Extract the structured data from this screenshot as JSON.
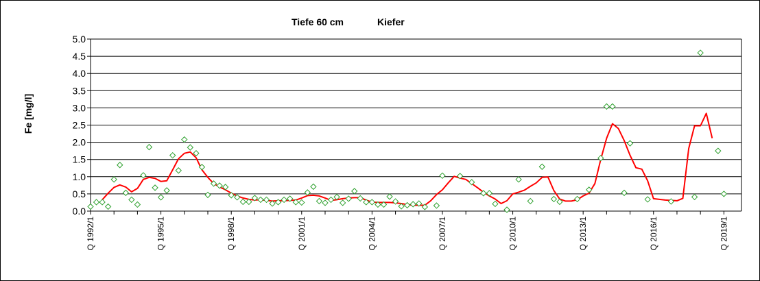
{
  "chart_data": {
    "type": "line",
    "title_depth": "Tiefe  60 cm",
    "title_species": "Kiefer",
    "ylabel": "Fe [mg/l]",
    "ylim": [
      0,
      5
    ],
    "yticks": [
      "0.0",
      "0.5",
      "1.0",
      "1.5",
      "2.0",
      "2.5",
      "3.0",
      "3.5",
      "4.0",
      "4.5",
      "5.0"
    ],
    "x_start_year": 1992,
    "x_end_year": 2019.75,
    "xtick_labels": [
      "Q 1992/1",
      "Q 1995/1",
      "Q 1998/1",
      "Q 2001/1",
      "Q 2004/1",
      "Q 2007/1",
      "Q 2010/1",
      "Q 2013/1",
      "Q 2016/1",
      "Q 2019/1"
    ],
    "xtick_years": [
      1992,
      1995,
      1998,
      2001,
      2004,
      2007,
      2010,
      2013,
      2016,
      2019
    ],
    "grid": "horizontal",
    "series": [
      {
        "kind": "markers",
        "color": "#2ea02e",
        "points": [
          [
            1992.0,
            0.13
          ],
          [
            1992.25,
            0.26
          ],
          [
            1992.5,
            0.26
          ],
          [
            1992.75,
            0.13
          ],
          [
            1993.0,
            0.92
          ],
          [
            1993.25,
            1.34
          ],
          [
            1993.5,
            0.53
          ],
          [
            1993.75,
            0.33
          ],
          [
            1994.0,
            0.19
          ],
          [
            1994.25,
            1.04
          ],
          [
            1994.5,
            1.86
          ],
          [
            1994.75,
            0.68
          ],
          [
            1995.0,
            0.4
          ],
          [
            1995.25,
            0.6
          ],
          [
            1995.5,
            1.62
          ],
          [
            1995.75,
            1.18
          ],
          [
            1996.0,
            2.08
          ],
          [
            1996.25,
            1.85
          ],
          [
            1996.5,
            1.68
          ],
          [
            1996.75,
            1.28
          ],
          [
            1997.0,
            0.47
          ],
          [
            1997.25,
            0.8
          ],
          [
            1997.5,
            0.74
          ],
          [
            1997.75,
            0.7
          ],
          [
            1998.0,
            0.46
          ],
          [
            1998.25,
            0.4
          ],
          [
            1998.5,
            0.27
          ],
          [
            1998.75,
            0.27
          ],
          [
            1999.0,
            0.38
          ],
          [
            1999.25,
            0.33
          ],
          [
            1999.5,
            0.33
          ],
          [
            1999.75,
            0.22
          ],
          [
            2000.0,
            0.26
          ],
          [
            2000.25,
            0.33
          ],
          [
            2000.5,
            0.36
          ],
          [
            2000.75,
            0.26
          ],
          [
            2001.0,
            0.25
          ],
          [
            2001.25,
            0.54
          ],
          [
            2001.5,
            0.71
          ],
          [
            2001.75,
            0.29
          ],
          [
            2002.0,
            0.24
          ],
          [
            2002.25,
            0.33
          ],
          [
            2002.5,
            0.41
          ],
          [
            2002.75,
            0.24
          ],
          [
            2003.0,
            0.36
          ],
          [
            2003.25,
            0.58
          ],
          [
            2003.5,
            0.37
          ],
          [
            2003.75,
            0.26
          ],
          [
            2004.0,
            0.26
          ],
          [
            2004.25,
            0.19
          ],
          [
            2004.5,
            0.19
          ],
          [
            2004.75,
            0.42
          ],
          [
            2005.0,
            0.28
          ],
          [
            2005.25,
            0.14
          ],
          [
            2005.5,
            0.17
          ],
          [
            2005.75,
            0.2
          ],
          [
            2006.0,
            0.22
          ],
          [
            2006.25,
            0.12
          ],
          [
            2006.75,
            0.16
          ],
          [
            2007.0,
            1.03
          ],
          [
            2007.75,
            1.02
          ],
          [
            2008.25,
            0.84
          ],
          [
            2008.75,
            0.52
          ],
          [
            2009.0,
            0.52
          ],
          [
            2009.25,
            0.21
          ],
          [
            2009.75,
            0.04
          ],
          [
            2010.25,
            0.92
          ],
          [
            2010.75,
            0.29
          ],
          [
            2011.25,
            1.29
          ],
          [
            2011.75,
            0.35
          ],
          [
            2012.0,
            0.27
          ],
          [
            2012.75,
            0.35
          ],
          [
            2013.25,
            0.62
          ],
          [
            2013.75,
            1.54
          ],
          [
            2014.0,
            3.04
          ],
          [
            2014.25,
            3.04
          ],
          [
            2014.75,
            0.53
          ],
          [
            2015.0,
            1.97
          ],
          [
            2015.75,
            0.34
          ],
          [
            2016.75,
            0.28
          ],
          [
            2017.75,
            0.41
          ],
          [
            2018.0,
            4.6
          ],
          [
            2018.75,
            1.75
          ],
          [
            2019.0,
            0.5
          ]
        ]
      },
      {
        "kind": "line",
        "color": "#ff0000",
        "points": [
          [
            1992.5,
            0.33
          ],
          [
            1992.75,
            0.52
          ],
          [
            1993.0,
            0.69
          ],
          [
            1993.25,
            0.76
          ],
          [
            1993.5,
            0.7
          ],
          [
            1993.75,
            0.56
          ],
          [
            1994.0,
            0.66
          ],
          [
            1994.25,
            0.92
          ],
          [
            1994.5,
            0.98
          ],
          [
            1994.75,
            0.95
          ],
          [
            1995.0,
            0.86
          ],
          [
            1995.25,
            0.88
          ],
          [
            1995.5,
            1.2
          ],
          [
            1995.75,
            1.52
          ],
          [
            1996.0,
            1.68
          ],
          [
            1996.25,
            1.72
          ],
          [
            1996.5,
            1.55
          ],
          [
            1996.75,
            1.2
          ],
          [
            1997.0,
            0.98
          ],
          [
            1997.25,
            0.8
          ],
          [
            1997.5,
            0.7
          ],
          [
            1997.75,
            0.62
          ],
          [
            1998.0,
            0.52
          ],
          [
            1998.25,
            0.44
          ],
          [
            1998.5,
            0.38
          ],
          [
            1998.75,
            0.34
          ],
          [
            1999.0,
            0.32
          ],
          [
            1999.25,
            0.33
          ],
          [
            1999.5,
            0.31
          ],
          [
            1999.75,
            0.29
          ],
          [
            2000.0,
            0.3
          ],
          [
            2000.25,
            0.3
          ],
          [
            2000.5,
            0.31
          ],
          [
            2000.75,
            0.32
          ],
          [
            2001.0,
            0.38
          ],
          [
            2001.25,
            0.45
          ],
          [
            2001.5,
            0.46
          ],
          [
            2001.75,
            0.44
          ],
          [
            2002.0,
            0.38
          ],
          [
            2002.25,
            0.31
          ],
          [
            2002.5,
            0.33
          ],
          [
            2002.75,
            0.36
          ],
          [
            2003.0,
            0.38
          ],
          [
            2003.25,
            0.39
          ],
          [
            2003.5,
            0.39
          ],
          [
            2003.75,
            0.32
          ],
          [
            2004.0,
            0.26
          ],
          [
            2004.25,
            0.25
          ],
          [
            2004.5,
            0.25
          ],
          [
            2004.75,
            0.25
          ],
          [
            2005.0,
            0.24
          ],
          [
            2005.25,
            0.22
          ],
          [
            2005.5,
            0.19
          ],
          [
            2005.75,
            0.17
          ],
          [
            2006.0,
            0.17
          ],
          [
            2006.25,
            0.17
          ],
          [
            2006.5,
            0.3
          ],
          [
            2006.75,
            0.48
          ],
          [
            2007.0,
            0.62
          ],
          [
            2007.25,
            0.82
          ],
          [
            2007.5,
            1.01
          ],
          [
            2007.75,
            0.96
          ],
          [
            2008.0,
            0.92
          ],
          [
            2008.25,
            0.8
          ],
          [
            2008.5,
            0.68
          ],
          [
            2008.75,
            0.55
          ],
          [
            2009.0,
            0.44
          ],
          [
            2009.25,
            0.35
          ],
          [
            2009.5,
            0.22
          ],
          [
            2009.75,
            0.3
          ],
          [
            2010.0,
            0.5
          ],
          [
            2010.25,
            0.55
          ],
          [
            2010.5,
            0.61
          ],
          [
            2010.75,
            0.72
          ],
          [
            2011.0,
            0.82
          ],
          [
            2011.25,
            0.98
          ],
          [
            2011.5,
            0.99
          ],
          [
            2011.75,
            0.6
          ],
          [
            2012.0,
            0.35
          ],
          [
            2012.25,
            0.29
          ],
          [
            2012.5,
            0.29
          ],
          [
            2012.75,
            0.33
          ],
          [
            2013.0,
            0.44
          ],
          [
            2013.25,
            0.52
          ],
          [
            2013.5,
            0.8
          ],
          [
            2013.75,
            1.5
          ],
          [
            2014.0,
            2.12
          ],
          [
            2014.25,
            2.54
          ],
          [
            2014.5,
            2.4
          ],
          [
            2014.75,
            2.05
          ],
          [
            2015.0,
            1.62
          ],
          [
            2015.25,
            1.26
          ],
          [
            2015.5,
            1.22
          ],
          [
            2015.75,
            0.88
          ],
          [
            2016.0,
            0.36
          ],
          [
            2016.25,
            0.34
          ],
          [
            2016.5,
            0.32
          ],
          [
            2016.75,
            0.31
          ],
          [
            2017.0,
            0.3
          ],
          [
            2017.25,
            0.37
          ],
          [
            2017.5,
            1.82
          ],
          [
            2017.75,
            2.48
          ],
          [
            2018.0,
            2.48
          ],
          [
            2018.25,
            2.84
          ],
          [
            2018.5,
            2.12
          ]
        ]
      }
    ]
  }
}
